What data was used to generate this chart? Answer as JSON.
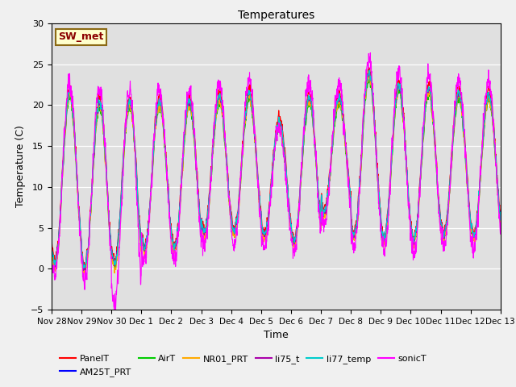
{
  "title": "Temperatures",
  "ylabel": "Temperature (C)",
  "xlabel": "Time",
  "ylim": [
    -5,
    30
  ],
  "bg_color": "#e0e0e0",
  "series": [
    {
      "name": "PanelT",
      "color": "#ff0000"
    },
    {
      "name": "AM25T_PRT",
      "color": "#0000ff"
    },
    {
      "name": "AirT",
      "color": "#00cc00"
    },
    {
      "name": "NR01_PRT",
      "color": "#ffaa00"
    },
    {
      "name": "li75_t",
      "color": "#aa00aa"
    },
    {
      "name": "li77_temp",
      "color": "#00cccc"
    },
    {
      "name": "sonicT",
      "color": "#ff00ff"
    }
  ],
  "annotation_text": "SW_met",
  "annotation_text_color": "#8B0000",
  "annotation_bg": "#ffffcc",
  "annotation_border": "#8B6914",
  "xtick_labels": [
    "Nov 28",
    "Nov 29",
    "Nov 30",
    "Dec 1",
    "Dec 2",
    "Dec 3",
    "Dec 4",
    "Dec 5",
    "Dec 6",
    "Dec 7",
    "Dec 8",
    "Dec 9",
    "Dec 10",
    "Dec 11",
    "Dec 12",
    "Dec 13"
  ],
  "num_days": 15,
  "points_per_day": 144
}
